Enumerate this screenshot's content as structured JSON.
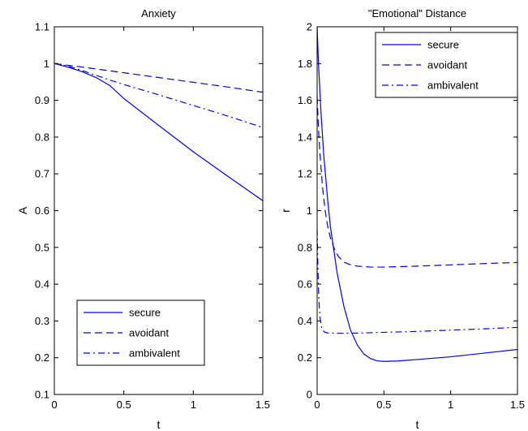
{
  "chart_data": [
    {
      "type": "line",
      "title": "Anxiety",
      "xlabel": "t",
      "ylabel": "A",
      "xlim": [
        0,
        1.5
      ],
      "ylim": [
        0.1,
        1.1
      ],
      "xticks": [
        0,
        0.5,
        1,
        1.5
      ],
      "xtick_labels": [
        "0",
        "0.5",
        "1",
        "1.5"
      ],
      "yticks": [
        0.1,
        0.2,
        0.3,
        0.4,
        0.5,
        0.6,
        0.7,
        0.8,
        0.9,
        1.0,
        1.1
      ],
      "ytick_labels": [
        "0.1",
        "0.2",
        "0.3",
        "0.4",
        "0.5",
        "0.6",
        "0.7",
        "0.8",
        "0.9",
        "1",
        "1.1"
      ],
      "grid": false,
      "legend_position": "bottom-center",
      "series": [
        {
          "name": "secure",
          "style": "solid",
          "x": [
            0,
            0.1,
            0.2,
            0.3,
            0.4,
            0.5,
            0.75,
            1.0,
            1.25,
            1.5
          ],
          "y": [
            1.0,
            0.99,
            0.978,
            0.962,
            0.94,
            0.905,
            0.832,
            0.76,
            0.693,
            0.627
          ]
        },
        {
          "name": "avoidant",
          "style": "dashed",
          "x": [
            0,
            0.25,
            0.5,
            0.75,
            1.0,
            1.25,
            1.5
          ],
          "y": [
            1.0,
            0.988,
            0.975,
            0.962,
            0.949,
            0.936,
            0.922
          ]
        },
        {
          "name": "ambivalent",
          "style": "dashdot",
          "x": [
            0,
            0.1,
            0.2,
            0.3,
            0.4,
            0.5,
            0.75,
            1.0,
            1.25,
            1.5
          ],
          "y": [
            1.0,
            0.993,
            0.981,
            0.968,
            0.955,
            0.943,
            0.915,
            0.886,
            0.857,
            0.826
          ]
        }
      ]
    },
    {
      "type": "line",
      "title": "\"Emotional\" Distance",
      "xlabel": "t",
      "ylabel": "r",
      "xlim": [
        0,
        1.5
      ],
      "ylim": [
        0,
        2
      ],
      "xticks": [
        0,
        0.5,
        1,
        1.5
      ],
      "xtick_labels": [
        "0",
        "0.5",
        "1",
        "1.5"
      ],
      "yticks": [
        0,
        0.2,
        0.4,
        0.6,
        0.8,
        1.0,
        1.2,
        1.4,
        1.6,
        1.8,
        2.0
      ],
      "ytick_labels": [
        "0",
        "0.2",
        "0.4",
        "0.6",
        "0.8",
        "1",
        "1.2",
        "1.4",
        "1.6",
        "1.8",
        "2"
      ],
      "grid": false,
      "legend_position": "top-right",
      "series": [
        {
          "name": "secure",
          "style": "solid",
          "x": [
            0,
            0.01,
            0.03,
            0.05,
            0.08,
            0.1,
            0.15,
            0.2,
            0.25,
            0.3,
            0.35,
            0.4,
            0.45,
            0.5,
            0.6,
            0.75,
            1.0,
            1.25,
            1.5
          ],
          "y": [
            2.0,
            1.8,
            1.52,
            1.3,
            1.05,
            0.91,
            0.66,
            0.48,
            0.35,
            0.27,
            0.22,
            0.195,
            0.183,
            0.18,
            0.182,
            0.19,
            0.205,
            0.225,
            0.245
          ]
        },
        {
          "name": "avoidant",
          "style": "dashed",
          "x": [
            0,
            0.01,
            0.02,
            0.04,
            0.06,
            0.08,
            0.1,
            0.13,
            0.16,
            0.2,
            0.25,
            0.3,
            0.4,
            0.5,
            0.75,
            1.0,
            1.25,
            1.5
          ],
          "y": [
            1.62,
            1.45,
            1.32,
            1.13,
            1.0,
            0.91,
            0.85,
            0.79,
            0.75,
            0.72,
            0.705,
            0.698,
            0.693,
            0.693,
            0.698,
            0.705,
            0.712,
            0.718
          ]
        },
        {
          "name": "ambivalent",
          "style": "dashdot",
          "x": [
            0,
            0.005,
            0.01,
            0.015,
            0.02,
            0.03,
            0.04,
            0.06,
            0.08,
            0.1,
            0.15,
            0.2,
            0.3,
            0.5,
            0.75,
            1.0,
            1.25,
            1.5
          ],
          "y": [
            0.9,
            0.72,
            0.58,
            0.49,
            0.43,
            0.375,
            0.35,
            0.338,
            0.335,
            0.334,
            0.333,
            0.333,
            0.334,
            0.338,
            0.343,
            0.35,
            0.357,
            0.365
          ]
        }
      ]
    }
  ],
  "colors": {
    "line": "#0000ff",
    "axes": "#000000",
    "background": "#ffffff"
  }
}
